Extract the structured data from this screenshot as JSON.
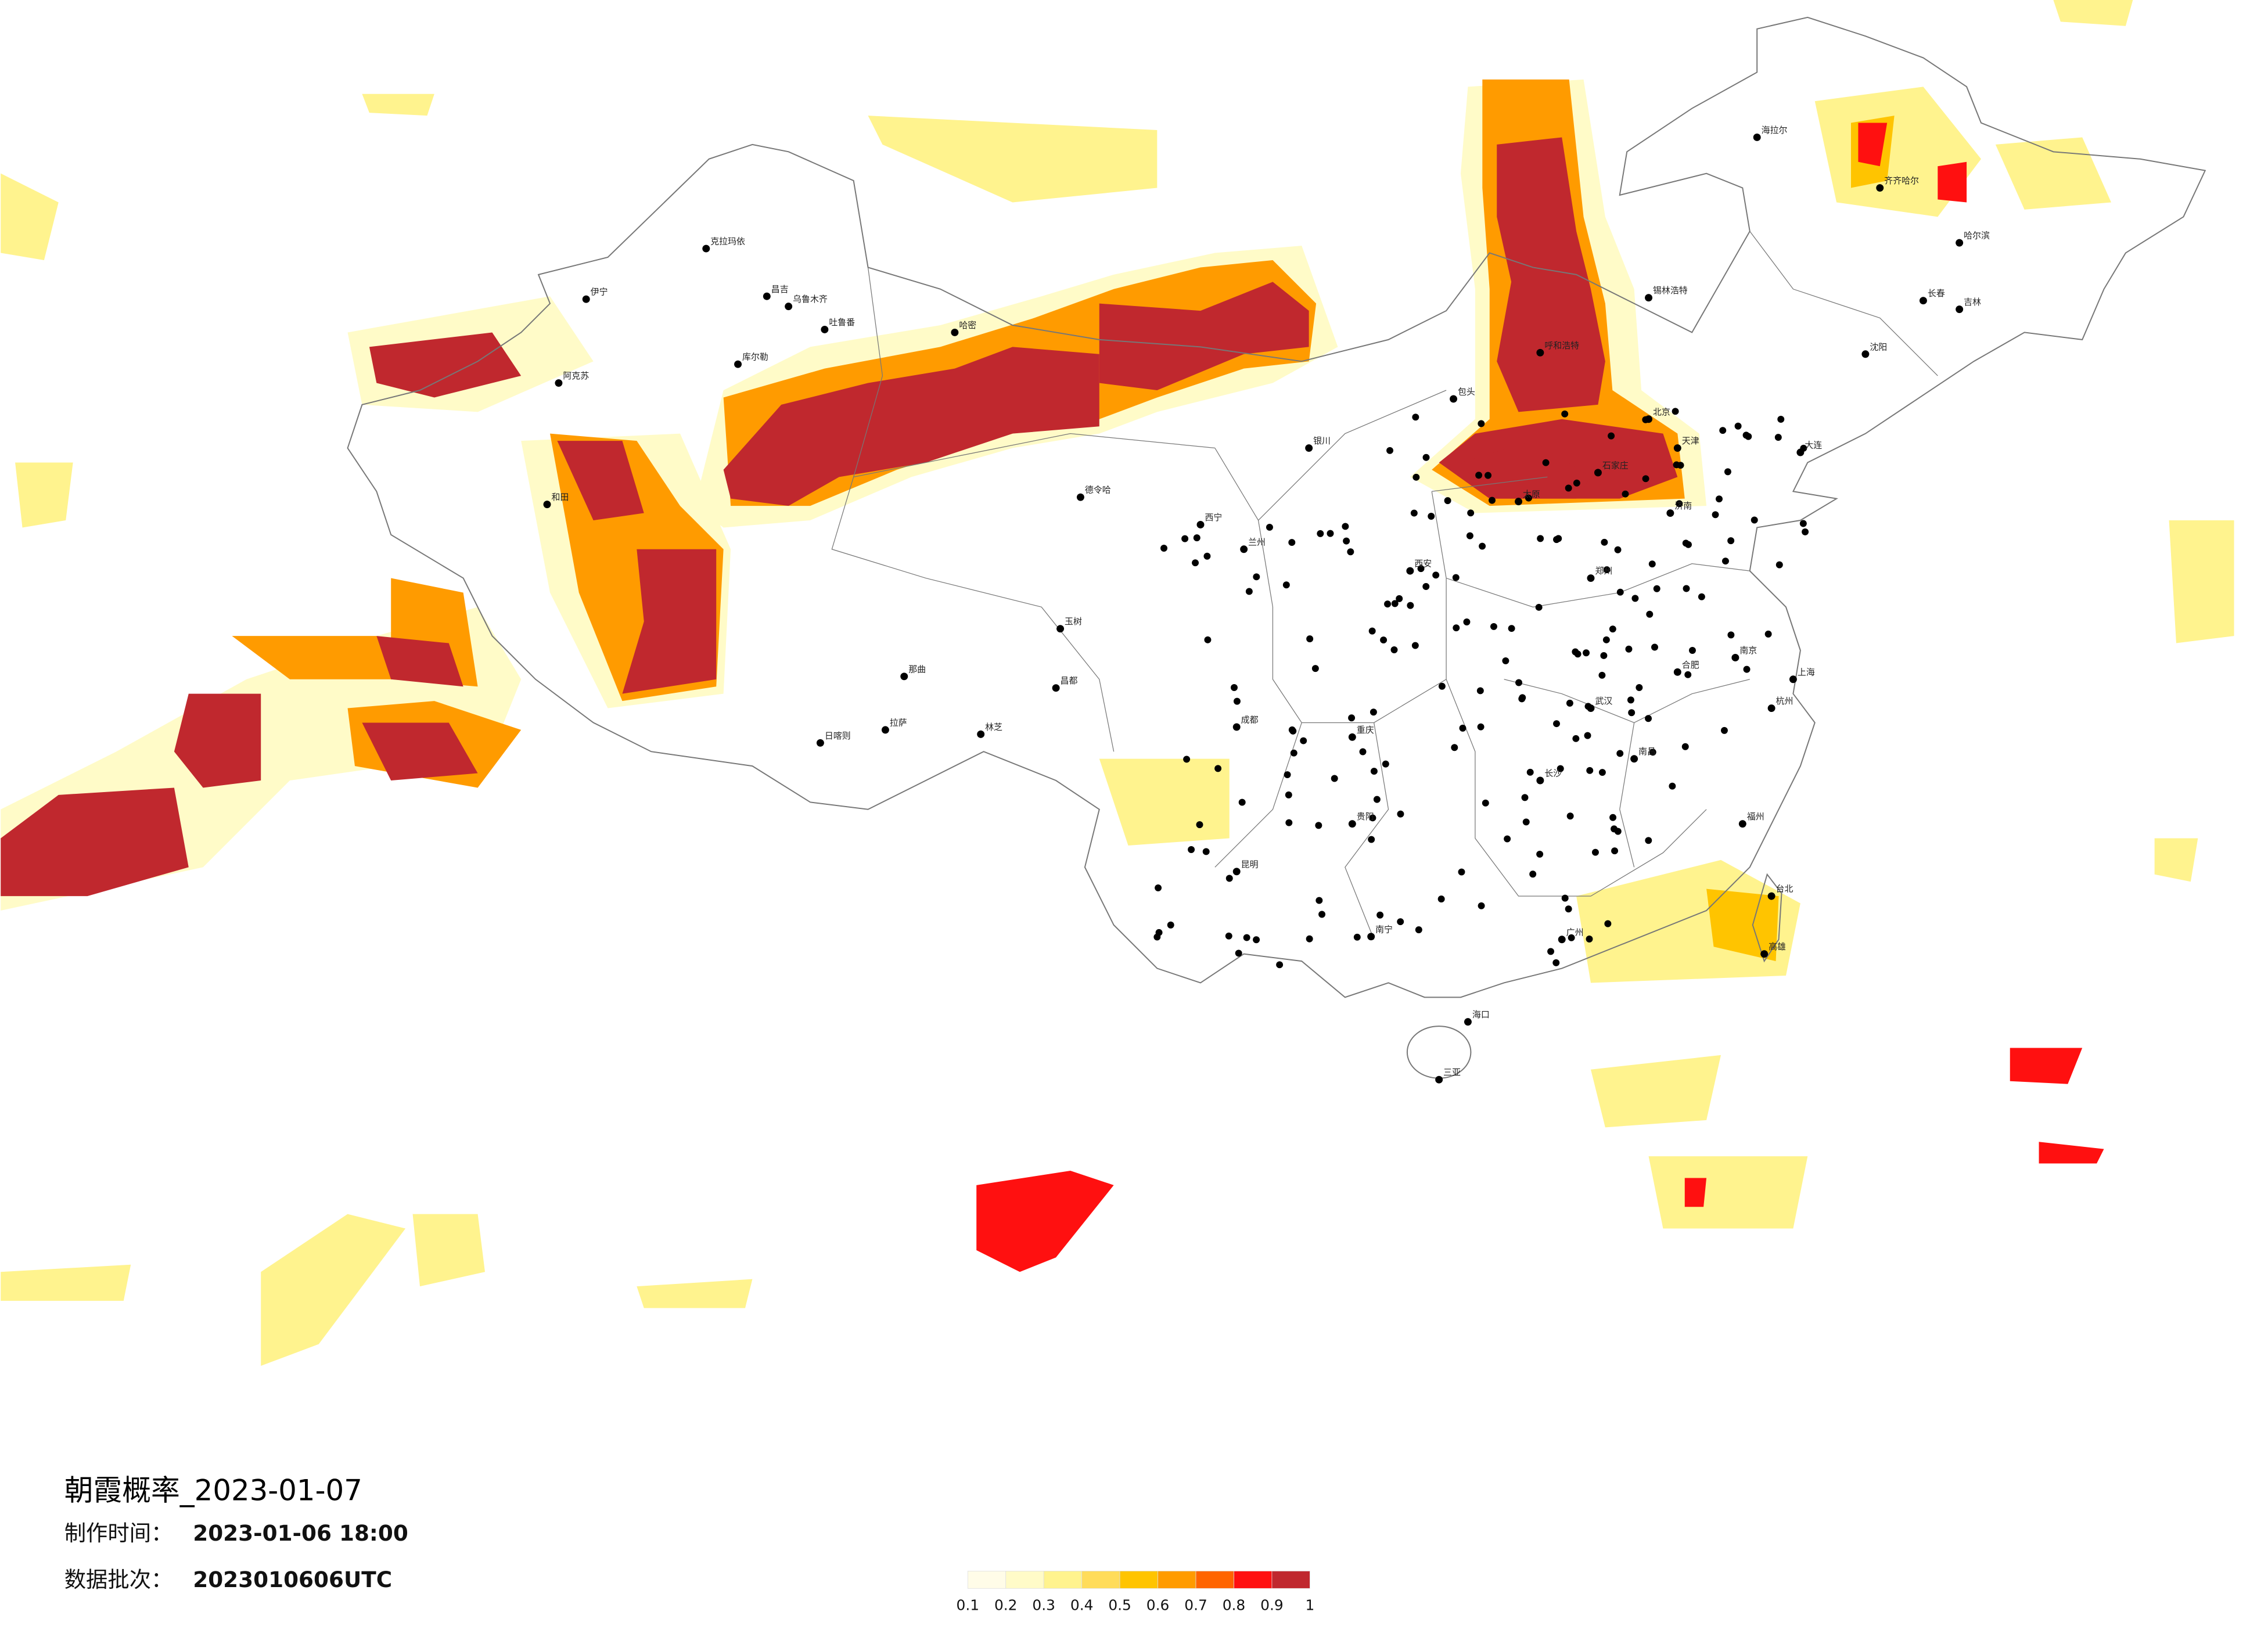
{
  "info": {
    "title": "朝霞概率_2023-01-07",
    "time_label": "制作时间：",
    "time_value": "2023-01-06 18:00",
    "batch_label": "数据批次：",
    "batch_value": "2023010606UTC"
  },
  "legend": {
    "colors": [
      "#fffce8",
      "#fffbc8",
      "#fff38e",
      "#ffdc5a",
      "#ffc400",
      "#ff9b00",
      "#ff6400",
      "#ff1010",
      "#c0282e"
    ],
    "labels": [
      "0.1",
      "0.2",
      "0.3",
      "0.4",
      "0.5",
      "0.6",
      "0.7",
      "0.8",
      "0.9",
      "1"
    ]
  },
  "cities": [
    "克拉玛依",
    "伊宁",
    "昌吉",
    "乌鲁木齐",
    "吐鲁番",
    "哈密",
    "库尔勒",
    "阿克苏",
    "和田",
    "那曲",
    "日喀则",
    "拉萨",
    "林芝",
    "昌都",
    "德令哈",
    "玉树",
    "西宁",
    "兰州",
    "银川",
    "呼和浩特",
    "包头",
    "锡林浩特",
    "海拉尔",
    "齐齐哈尔",
    "哈尔滨",
    "长春",
    "吉林",
    "沈阳",
    "大连",
    "北京",
    "天津",
    "石家庄",
    "太原",
    "济南",
    "郑州",
    "西安",
    "成都",
    "重庆",
    "贵阳",
    "昆明",
    "南宁",
    "广州",
    "长沙",
    "武汉",
    "南昌",
    "福州",
    "杭州",
    "上海",
    "南京",
    "合肥",
    "海口",
    "三亚",
    "台北",
    "高雄"
  ]
}
